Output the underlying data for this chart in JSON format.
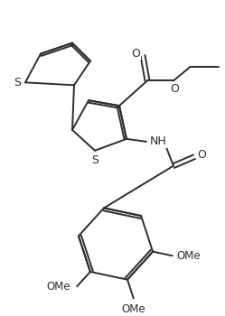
{
  "background_color": "#ffffff",
  "line_color": "#2d2d2d",
  "line_width": 1.4,
  "figsize": [
    2.49,
    3.5
  ],
  "dpi": 100,
  "xlim": [
    0,
    249
  ],
  "ylim": [
    0,
    350
  ]
}
